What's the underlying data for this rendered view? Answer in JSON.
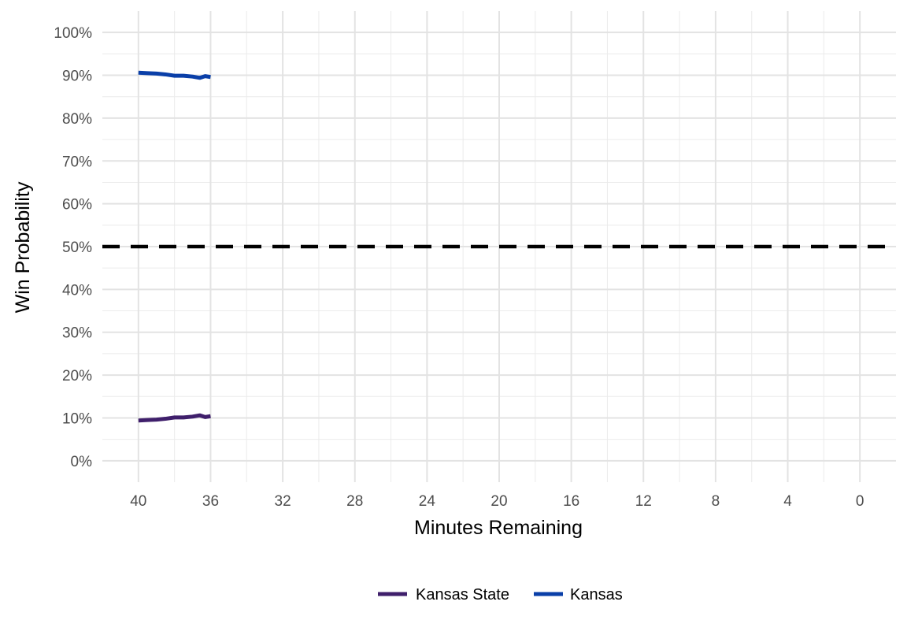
{
  "chart_data": {
    "type": "line",
    "title": "",
    "xlabel": "Minutes Remaining",
    "ylabel": "Win Probability",
    "xlim": [
      42,
      -2
    ],
    "ylim": [
      -0.05,
      1.05
    ],
    "x_reversed": true,
    "x_ticks": [
      40,
      36,
      32,
      28,
      24,
      20,
      16,
      12,
      8,
      4,
      0
    ],
    "x_tick_labels": [
      "40",
      "36",
      "32",
      "28",
      "24",
      "20",
      "16",
      "12",
      "8",
      "4",
      "0"
    ],
    "y_ticks": [
      0,
      0.1,
      0.2,
      0.3,
      0.4,
      0.5,
      0.6,
      0.7,
      0.8,
      0.9,
      1.0
    ],
    "y_tick_labels": [
      "0%",
      "10%",
      "20%",
      "30%",
      "40%",
      "50%",
      "60%",
      "70%",
      "80%",
      "90%",
      "100%"
    ],
    "grid": true,
    "legend_position": "bottom",
    "reference_line": {
      "y": 0.5,
      "style": "dashed",
      "color": "#000000"
    },
    "series": [
      {
        "name": "Kansas State",
        "color": "#3f1f6b",
        "x": [
          40,
          39.5,
          39,
          38.5,
          38,
          37.5,
          37,
          36.6,
          36.3,
          36
        ],
        "y": [
          0.094,
          0.095,
          0.096,
          0.098,
          0.101,
          0.101,
          0.103,
          0.106,
          0.102,
          0.104
        ]
      },
      {
        "name": "Kansas",
        "color": "#0a3fa8",
        "x": [
          40,
          39.5,
          39,
          38.5,
          38,
          37.5,
          37,
          36.6,
          36.3,
          36
        ],
        "y": [
          0.906,
          0.905,
          0.904,
          0.902,
          0.899,
          0.899,
          0.897,
          0.894,
          0.898,
          0.896
        ]
      }
    ]
  }
}
